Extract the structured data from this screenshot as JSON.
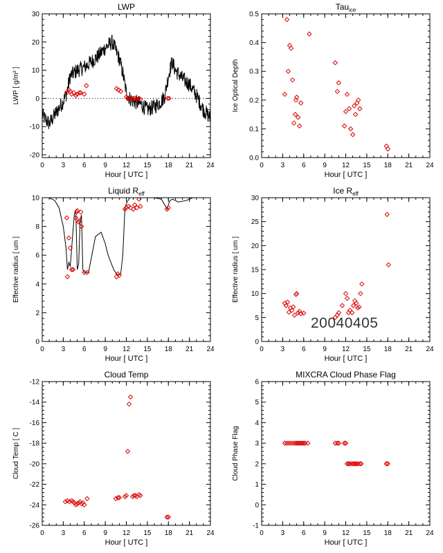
{
  "stamp": "20040405",
  "colors": {
    "line": "#000000",
    "marker": "#dd0000",
    "axis": "#000000"
  },
  "chart_data": [
    {
      "type": "line",
      "title": "LWP",
      "xlabel": "Hour [ UTC ]",
      "ylabel": "LWP [ g/m² ]",
      "xlim": [
        0,
        24
      ],
      "ylim": [
        -21,
        30
      ],
      "xticks": [
        0,
        3,
        6,
        9,
        12,
        15,
        18,
        21,
        24
      ],
      "yticks": [
        -20,
        -10,
        0,
        10,
        20,
        30
      ],
      "reference_line": {
        "y": 0,
        "style": "dotted"
      },
      "series": [
        {
          "kind": "noisy-line",
          "x": [
            0,
            1,
            2,
            3,
            3.5,
            4,
            5,
            6,
            7,
            8,
            9,
            10,
            11,
            11.5,
            12,
            12.5,
            13,
            14,
            15,
            16,
            17,
            17.5,
            18,
            18.5,
            19,
            20,
            21,
            22,
            23,
            24
          ],
          "y": [
            -6,
            -9,
            -5,
            -1,
            2,
            8,
            10,
            11,
            13,
            15,
            18,
            20,
            14,
            9,
            2,
            0,
            -1,
            -2,
            -4,
            -3,
            -1,
            1,
            8,
            13,
            10,
            7,
            5,
            1,
            -4,
            -7
          ]
        },
        {
          "kind": "markers",
          "x": [
            3.5,
            3.8,
            4.0,
            4.2,
            4.5,
            4.8,
            5.0,
            5.3,
            5.5,
            6.0,
            6.3,
            10.6,
            10.9,
            11.2,
            12.0,
            12.2,
            12.5,
            12.8,
            13.0,
            13.3,
            13.5,
            13.8,
            14.0,
            17.9,
            18.1
          ],
          "y": [
            2,
            3,
            2.5,
            1.5,
            2,
            1,
            1.5,
            2,
            2,
            1.5,
            4.5,
            3.5,
            3,
            2.5,
            0.5,
            0,
            0,
            -0.3,
            0,
            0,
            -0.2,
            0,
            -0.3,
            0,
            0
          ]
        }
      ]
    },
    {
      "type": "scatter",
      "title": "Tau",
      "title_sub": "ice",
      "xlabel": "Hour [ UTC ]",
      "ylabel": "Ice Optical Depth",
      "xlim": [
        0,
        24
      ],
      "ylim": [
        0,
        0.5
      ],
      "xticks": [
        0,
        3,
        6,
        9,
        12,
        15,
        18,
        21,
        24
      ],
      "yticks": [
        0.0,
        0.1,
        0.2,
        0.3,
        0.4,
        0.5
      ],
      "series": [
        {
          "kind": "markers",
          "x": [
            3.3,
            3.6,
            3.8,
            4.0,
            4.2,
            4.4,
            4.6,
            4.8,
            4.9,
            5.0,
            5.2,
            5.4,
            5.6,
            6.8,
            10.5,
            10.8,
            11.0,
            11.8,
            12.0,
            12.2,
            12.5,
            12.7,
            13.0,
            13.2,
            13.4,
            13.6,
            13.8,
            14.0,
            17.8,
            18.0
          ],
          "y": [
            0.22,
            0.48,
            0.3,
            0.39,
            0.38,
            0.27,
            0.12,
            0.15,
            0.2,
            0.21,
            0.14,
            0.11,
            0.19,
            0.43,
            0.33,
            0.23,
            0.26,
            0.11,
            0.16,
            0.22,
            0.17,
            0.1,
            0.08,
            0.18,
            0.15,
            0.19,
            0.2,
            0.17,
            0.04,
            0.03
          ]
        }
      ]
    },
    {
      "type": "line",
      "title": "Liquid R",
      "title_sub": "eff",
      "xlabel": "Hour [ UTC ]",
      "ylabel": "Effective radius [ um ]",
      "xlim": [
        0,
        24
      ],
      "ylim": [
        0,
        10
      ],
      "xticks": [
        0,
        3,
        6,
        9,
        12,
        15,
        18,
        21,
        24
      ],
      "yticks": [
        0,
        2,
        4,
        6,
        8,
        10
      ],
      "series": [
        {
          "kind": "line",
          "x": [
            0,
            1,
            1.8,
            2.4,
            3.0,
            3.4,
            3.6,
            3.8,
            4.0,
            4.4,
            4.6,
            4.8,
            5.0,
            5.2,
            5.4,
            5.6,
            5.8,
            6.0,
            6.2,
            6.4,
            6.6,
            7.0,
            7.6,
            8.4,
            9.0,
            9.4,
            9.8,
            10.2,
            10.6,
            10.9,
            11.2,
            11.5,
            11.8,
            12.1,
            12.5,
            13.0,
            14.0,
            15.0,
            16.0,
            17.0,
            17.6,
            17.8,
            18.0,
            18.2,
            18.6,
            19.4,
            20.5,
            21.5,
            22.5,
            24
          ],
          "y": [
            10,
            10,
            9.8,
            9.3,
            8.0,
            6.5,
            5.0,
            5.5,
            5.2,
            7.8,
            8.9,
            9.0,
            5.0,
            5.4,
            8.4,
            8.8,
            5.0,
            4.8,
            4.8,
            4.8,
            4.8,
            5.8,
            7.3,
            7.6,
            6.8,
            6.0,
            5.5,
            5.0,
            4.7,
            4.6,
            4.7,
            6.0,
            9.3,
            9.7,
            10,
            10,
            10,
            10,
            10,
            9.9,
            9.4,
            9.2,
            9.5,
            9.8,
            9.9,
            9.7,
            9.8,
            10,
            10,
            10
          ]
        },
        {
          "kind": "markers",
          "x": [
            3.5,
            3.6,
            3.8,
            4.0,
            4.2,
            4.4,
            4.8,
            4.9,
            5.0,
            5.2,
            5.3,
            5.5,
            5.6,
            6.0,
            6.4,
            10.6,
            10.8,
            11.0,
            11.8,
            12.0,
            12.3,
            12.6,
            13.0,
            13.2,
            13.5,
            13.8,
            14.0,
            17.8,
            18.0
          ],
          "y": [
            8.6,
            4.5,
            7.2,
            6.5,
            5.0,
            5.0,
            8.6,
            9.0,
            9.1,
            8.3,
            8.4,
            9.0,
            8.0,
            4.8,
            4.8,
            4.5,
            4.7,
            4.6,
            9.2,
            9.3,
            9.4,
            9.3,
            9.2,
            9.5,
            9.3,
            9.9,
            9.4,
            9.2,
            9.3
          ]
        }
      ]
    },
    {
      "type": "scatter",
      "title": "Ice R",
      "title_sub": "eff",
      "xlabel": "Hour [ UTC ]",
      "ylabel": "Effective radius [ um ]",
      "xlim": [
        0,
        24
      ],
      "ylim": [
        0,
        30
      ],
      "xticks": [
        0,
        3,
        6,
        9,
        12,
        15,
        18,
        21,
        24
      ],
      "yticks": [
        0,
        5,
        10,
        15,
        20,
        25,
        30
      ],
      "series": [
        {
          "kind": "markers",
          "x": [
            3.3,
            3.5,
            3.7,
            3.9,
            4.1,
            4.3,
            4.5,
            4.7,
            4.9,
            5.0,
            5.2,
            5.4,
            5.6,
            6.0,
            10.5,
            10.8,
            11.0,
            11.5,
            12.0,
            12.2,
            12.4,
            12.6,
            12.9,
            13.1,
            13.3,
            13.5,
            13.7,
            13.9,
            14.1,
            14.3,
            17.9,
            18.1
          ],
          "y": [
            8,
            7.5,
            8.2,
            6.1,
            7.0,
            6.5,
            7.2,
            5.5,
            9.8,
            10.0,
            6.0,
            6.3,
            5.8,
            5.9,
            5.0,
            5.5,
            6.0,
            7.5,
            10.0,
            9.0,
            6.0,
            6.5,
            6.0,
            7.5,
            8.5,
            8.0,
            7.0,
            7.2,
            10.0,
            12.0,
            26.5,
            16.0
          ]
        }
      ]
    },
    {
      "type": "scatter",
      "title": "Cloud Temp",
      "xlabel": "Hour [ UTC ]",
      "ylabel": "Cloud Temp [ C ]",
      "xlim": [
        0,
        24
      ],
      "ylim": [
        -26,
        -12
      ],
      "xticks": [
        0,
        3,
        6,
        9,
        12,
        15,
        18,
        21,
        24
      ],
      "yticks": [
        -26,
        -24,
        -22,
        -20,
        -18,
        -16,
        -14,
        -12
      ],
      "series": [
        {
          "kind": "markers",
          "x": [
            3.3,
            3.6,
            3.9,
            4.2,
            4.4,
            4.6,
            4.8,
            5.0,
            5.2,
            5.4,
            5.6,
            5.8,
            6.0,
            6.4,
            10.5,
            10.8,
            11.0,
            11.8,
            12.0,
            12.2,
            12.4,
            12.6,
            12.9,
            13.1,
            13.3,
            13.5,
            13.8,
            14.0,
            17.8,
            18.0
          ],
          "y": [
            -23.7,
            -23.6,
            -23.7,
            -23.6,
            -23.7,
            -23.8,
            -24.0,
            -23.9,
            -23.8,
            -23.7,
            -23.9,
            -23.8,
            -24.0,
            -23.4,
            -23.4,
            -23.3,
            -23.3,
            -23.2,
            -23.1,
            -18.8,
            -14.2,
            -13.5,
            -23.2,
            -23.1,
            -23.1,
            -23.2,
            -23.0,
            -23.1,
            -25.2,
            -25.2
          ]
        }
      ]
    },
    {
      "type": "scatter",
      "title": "MIXCRA Cloud Phase Flag",
      "xlabel": "Hour [ UTC ]",
      "ylabel": "Cloud Phase Flag",
      "xlim": [
        0,
        24
      ],
      "ylim": [
        -1,
        6
      ],
      "xticks": [
        0,
        3,
        6,
        9,
        12,
        15,
        18,
        21,
        24
      ],
      "yticks": [
        -1,
        0,
        1,
        2,
        3,
        4,
        5,
        6
      ],
      "series": [
        {
          "kind": "markers",
          "x": [
            3.3,
            3.6,
            3.9,
            4.2,
            4.5,
            4.8,
            5.0,
            5.2,
            5.4,
            5.6,
            5.8,
            6.0,
            6.2,
            6.6,
            10.5,
            10.8,
            11.0,
            11.8,
            12.0,
            12.2,
            12.4,
            12.6,
            12.9,
            13.1,
            13.3,
            13.5,
            13.7,
            14.0,
            14.2,
            17.8,
            18.0
          ],
          "y": [
            3,
            3,
            3,
            3,
            3,
            3,
            3,
            3,
            3,
            3,
            3,
            3,
            3,
            3,
            3,
            3,
            3,
            3,
            3,
            2,
            2,
            2,
            2,
            2,
            2,
            2,
            2,
            2,
            2,
            2,
            2
          ]
        }
      ]
    }
  ]
}
